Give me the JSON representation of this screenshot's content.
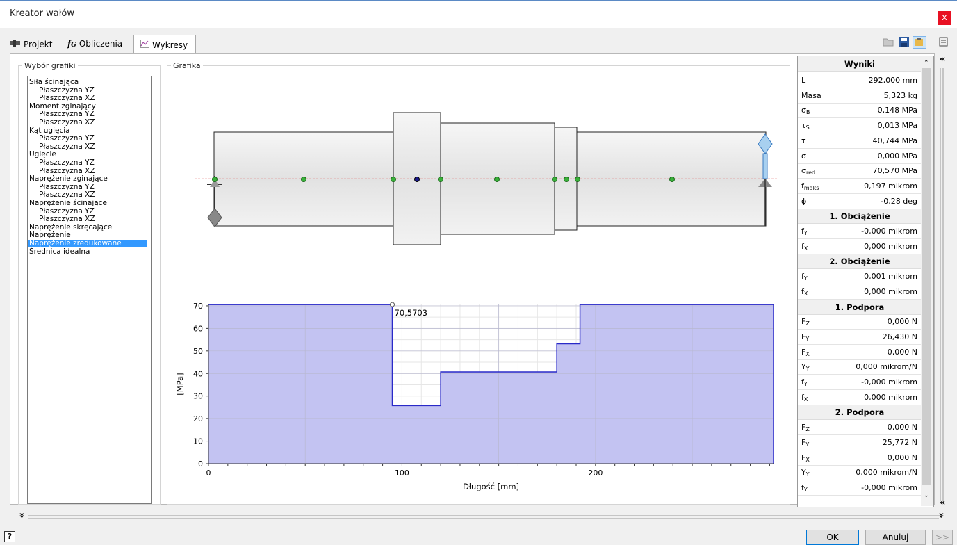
{
  "window": {
    "title": "Kreator wałów",
    "close": "x"
  },
  "tabs": [
    {
      "label": "Projekt"
    },
    {
      "label": "Obliczenia"
    },
    {
      "label": "Wykresy"
    }
  ],
  "toolbar": {
    "icons": [
      "open-folder-icon",
      "save-icon",
      "settings-icon",
      "notes-icon"
    ]
  },
  "wybor": {
    "title": "Wybór grafiki",
    "items": [
      {
        "label": "Siła ścinająca",
        "sub": false
      },
      {
        "label": "Płaszczyzna YZ",
        "sub": true
      },
      {
        "label": "Płaszczyzna XZ",
        "sub": true
      },
      {
        "label": "Moment zginający",
        "sub": false
      },
      {
        "label": "Płaszczyzna YZ",
        "sub": true
      },
      {
        "label": "Płaszczyzna XZ",
        "sub": true
      },
      {
        "label": "Kąt ugięcia",
        "sub": false
      },
      {
        "label": "Płaszczyzna YZ",
        "sub": true
      },
      {
        "label": "Płaszczyzna XZ",
        "sub": true
      },
      {
        "label": "Ugięcie",
        "sub": false
      },
      {
        "label": "Płaszczyzna YZ",
        "sub": true
      },
      {
        "label": "Płaszczyzna XZ",
        "sub": true
      },
      {
        "label": "Naprężenie zginające",
        "sub": false
      },
      {
        "label": "Płaszczyzna YZ",
        "sub": true
      },
      {
        "label": "Płaszczyzna XZ",
        "sub": true
      },
      {
        "label": "Naprężenie ścinające",
        "sub": false
      },
      {
        "label": "Płaszczyzna YZ",
        "sub": true
      },
      {
        "label": "Płaszczyzna XZ",
        "sub": true
      },
      {
        "label": "Naprężenie skręcające",
        "sub": false
      },
      {
        "label": "Naprężenie",
        "sub": false
      },
      {
        "label": "Naprężenie zredukowane",
        "sub": false,
        "selected": true
      },
      {
        "label": "Średnica idealna",
        "sub": false
      }
    ]
  },
  "grafika": {
    "title": "Grafika"
  },
  "chart_data": {
    "type": "area",
    "x": [
      0,
      95,
      95,
      120,
      120,
      180,
      180,
      192,
      192,
      292
    ],
    "values": [
      70.5703,
      70.5703,
      25.8,
      25.8,
      40.7,
      40.7,
      53.2,
      53.2,
      70.5703,
      70.5703
    ],
    "xlabel": "Długość [mm]",
    "ylabel": "[MPa]",
    "xlim": [
      0,
      292
    ],
    "ylim": [
      0,
      70.6
    ],
    "x_ticks": [
      "0",
      "100",
      "200"
    ],
    "y_ticks": [
      "0",
      "10",
      "20",
      "30",
      "40",
      "50",
      "60",
      "70"
    ],
    "annotation": "70,5703",
    "fill_color": "#c3c3f2",
    "line_color": "#2a2ac8",
    "grid": true
  },
  "results": {
    "title": "Wyniki",
    "rows": [
      {
        "k": "L",
        "v": "292,000 mm"
      },
      {
        "k": "Masa",
        "v": "5,323 kg"
      },
      {
        "k": "σ",
        "s": "B",
        "v": "0,148 MPa"
      },
      {
        "k": "τ",
        "s": "S",
        "v": "0,013 MPa"
      },
      {
        "k": "τ",
        "v": "40,744 MPa"
      },
      {
        "k": "σ",
        "s": "T",
        "v": "0,000 MPa"
      },
      {
        "k": "σ",
        "s": "red",
        "v": "70,570 MPa"
      },
      {
        "k": "f",
        "s": "maks",
        "v": "0,197 mikrom"
      },
      {
        "k": "ϕ",
        "v": "-0,28 deg"
      },
      {
        "head": "1. Obciążenie"
      },
      {
        "k": "f",
        "s": "Y",
        "v": "-0,000 mikrom"
      },
      {
        "k": "f",
        "s": "X",
        "v": "0,000 mikrom"
      },
      {
        "head": "2. Obciążenie"
      },
      {
        "k": "f",
        "s": "Y",
        "v": "0,001 mikrom"
      },
      {
        "k": "f",
        "s": "X",
        "v": "0,000 mikrom"
      },
      {
        "head": "1. Podpora"
      },
      {
        "k": "F",
        "s": "Z",
        "v": "0,000 N"
      },
      {
        "k": "F",
        "s": "Y",
        "v": "26,430 N"
      },
      {
        "k": "F",
        "s": "X",
        "v": "0,000 N"
      },
      {
        "k": "Y",
        "s": "Y",
        "v": "0,000 mikrom/N"
      },
      {
        "k": "f",
        "s": "Y",
        "v": "-0,000 mikrom"
      },
      {
        "k": "f",
        "s": "X",
        "v": "0,000 mikrom"
      },
      {
        "head": "2. Podpora"
      },
      {
        "k": "F",
        "s": "Z",
        "v": "0,000 N"
      },
      {
        "k": "F",
        "s": "Y",
        "v": "25,772 N"
      },
      {
        "k": "F",
        "s": "X",
        "v": "0,000 N"
      },
      {
        "k": "Y",
        "s": "Y",
        "v": "0,000 mikrom/N"
      },
      {
        "k": "f",
        "s": "Y",
        "v": "-0,000 mikrom"
      }
    ]
  },
  "buttons": {
    "ok": "OK",
    "cancel": "Anuluj",
    "more": ">>",
    "help": "?"
  },
  "splitters": {
    "collapse_right": "«",
    "collapse_down": "»"
  }
}
